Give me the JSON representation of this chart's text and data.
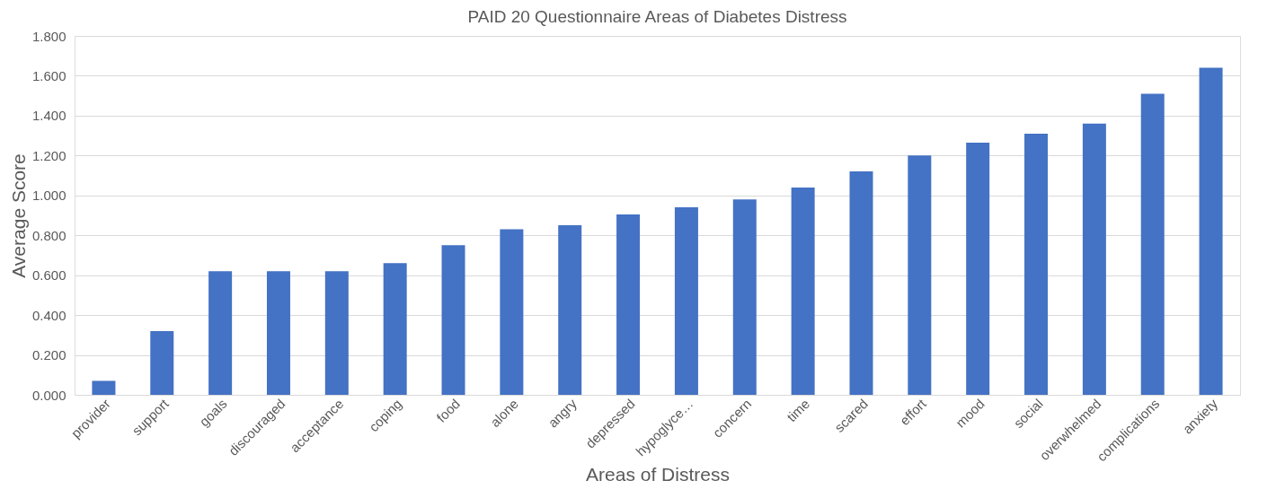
{
  "chart_data": {
    "type": "bar",
    "title": "PAID 20 Questionnaire  Areas of Diabetes Distress",
    "xlabel": "Areas of Distress",
    "ylabel": "Average Score",
    "categories": [
      "provider",
      "support",
      "goals",
      "discouraged",
      "acceptance",
      "coping",
      "food",
      "alone",
      "angry",
      "depressed",
      "hypoglyce…",
      "concern",
      "time",
      "scared",
      "effort",
      "mood",
      "social",
      "overwhelmed",
      "complications",
      "anxiety"
    ],
    "values": [
      0.07,
      0.32,
      0.62,
      0.62,
      0.62,
      0.66,
      0.75,
      0.83,
      0.85,
      0.905,
      0.94,
      0.98,
      1.04,
      1.12,
      1.2,
      1.265,
      1.31,
      1.36,
      1.51,
      1.64
    ],
    "color": "#4472c4",
    "ylim": [
      0,
      1.8
    ],
    "yticks": [
      {
        "value": 0,
        "label": "0.000"
      },
      {
        "value": 0.2,
        "label": "0.200"
      },
      {
        "value": 0.4,
        "label": "0.400"
      },
      {
        "value": 0.6,
        "label": "0.600"
      },
      {
        "value": 0.8,
        "label": "0.800"
      },
      {
        "value": 1.0,
        "label": "1.000"
      },
      {
        "value": 1.2,
        "label": "1.200"
      },
      {
        "value": 1.4,
        "label": "1.400"
      },
      {
        "value": 1.6,
        "label": "1.600"
      },
      {
        "value": 1.8,
        "label": "1.800"
      }
    ],
    "grid": "y"
  }
}
